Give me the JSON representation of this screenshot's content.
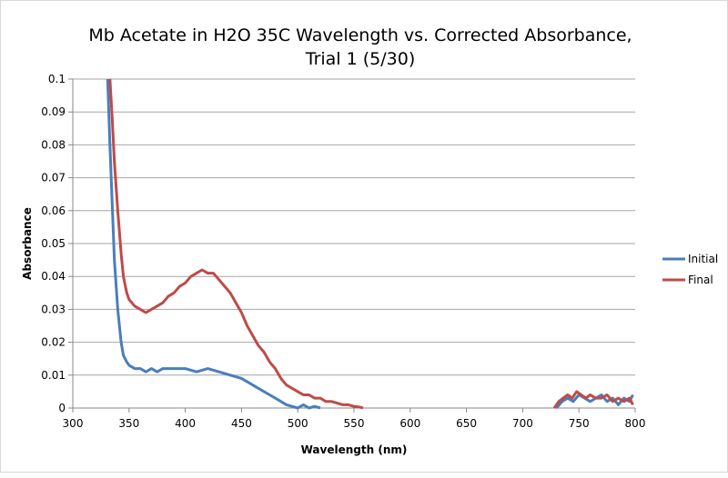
{
  "chart_data": {
    "type": "line",
    "title": "Mb Acetate in H2O 35C Wavelength vs. Corrected Absorbance,",
    "title_line2": "Trial 1 (5/30)",
    "xlabel": "Wavelength (nm)",
    "ylabel": "Absorbance",
    "xlim": [
      300,
      800
    ],
    "ylim": [
      0,
      0.1
    ],
    "xticks": [
      "300",
      "350",
      "400",
      "450",
      "500",
      "550",
      "600",
      "650",
      "700",
      "750",
      "800"
    ],
    "yticks": [
      "0",
      "0.01",
      "0.02",
      "0.03",
      "0.04",
      "0.05",
      "0.06",
      "0.07",
      "0.08",
      "0.09",
      "0.1"
    ],
    "grid": "horizontal major",
    "legend_position": "right",
    "series": [
      {
        "name": "Initial",
        "color": "#4a7ebb",
        "x": [
          331,
          333,
          335,
          337,
          340,
          343,
          345,
          348,
          350,
          355,
          360,
          365,
          370,
          375,
          380,
          390,
          400,
          410,
          420,
          430,
          440,
          450,
          460,
          465,
          470,
          475,
          480,
          485,
          490,
          495,
          500,
          505,
          510,
          515,
          520,
          730,
          735,
          740,
          745,
          750,
          755,
          760,
          765,
          770,
          775,
          780,
          785,
          790,
          795,
          798
        ],
        "y": [
          0.1,
          0.08,
          0.062,
          0.045,
          0.03,
          0.02,
          0.016,
          0.014,
          0.013,
          0.012,
          0.012,
          0.011,
          0.012,
          0.011,
          0.012,
          0.012,
          0.012,
          0.011,
          0.012,
          0.011,
          0.01,
          0.009,
          0.007,
          0.006,
          0.005,
          0.004,
          0.003,
          0.002,
          0.001,
          0.0005,
          0,
          0.001,
          0,
          0.0005,
          0,
          0,
          0.002,
          0.003,
          0.002,
          0.004,
          0.003,
          0.002,
          0.003,
          0.004,
          0.002,
          0.003,
          0.001,
          0.003,
          0.002,
          0.004
        ]
      },
      {
        "name": "Final",
        "color": "#be4b48",
        "x": [
          333,
          335,
          337,
          340,
          343,
          345,
          348,
          350,
          355,
          360,
          365,
          370,
          375,
          380,
          385,
          390,
          395,
          400,
          405,
          410,
          415,
          420,
          425,
          430,
          435,
          440,
          445,
          450,
          455,
          460,
          465,
          470,
          475,
          480,
          485,
          490,
          495,
          500,
          505,
          510,
          515,
          520,
          525,
          530,
          535,
          540,
          545,
          550,
          555,
          558,
          728,
          732,
          736,
          740,
          744,
          748,
          752,
          756,
          760,
          765,
          770,
          775,
          780,
          785,
          790,
          795,
          798
        ],
        "y": [
          0.1,
          0.088,
          0.075,
          0.06,
          0.047,
          0.04,
          0.035,
          0.033,
          0.031,
          0.03,
          0.029,
          0.03,
          0.031,
          0.032,
          0.034,
          0.035,
          0.037,
          0.038,
          0.04,
          0.041,
          0.042,
          0.041,
          0.041,
          0.039,
          0.037,
          0.035,
          0.032,
          0.029,
          0.025,
          0.022,
          0.019,
          0.017,
          0.014,
          0.012,
          0.009,
          0.007,
          0.006,
          0.005,
          0.004,
          0.004,
          0.003,
          0.003,
          0.002,
          0.002,
          0.0015,
          0.001,
          0.001,
          0.0005,
          0.0003,
          0,
          0,
          0.002,
          0.003,
          0.004,
          0.003,
          0.005,
          0.004,
          0.003,
          0.004,
          0.003,
          0.003,
          0.004,
          0.002,
          0.003,
          0.002,
          0.003,
          0.001
        ]
      }
    ]
  }
}
